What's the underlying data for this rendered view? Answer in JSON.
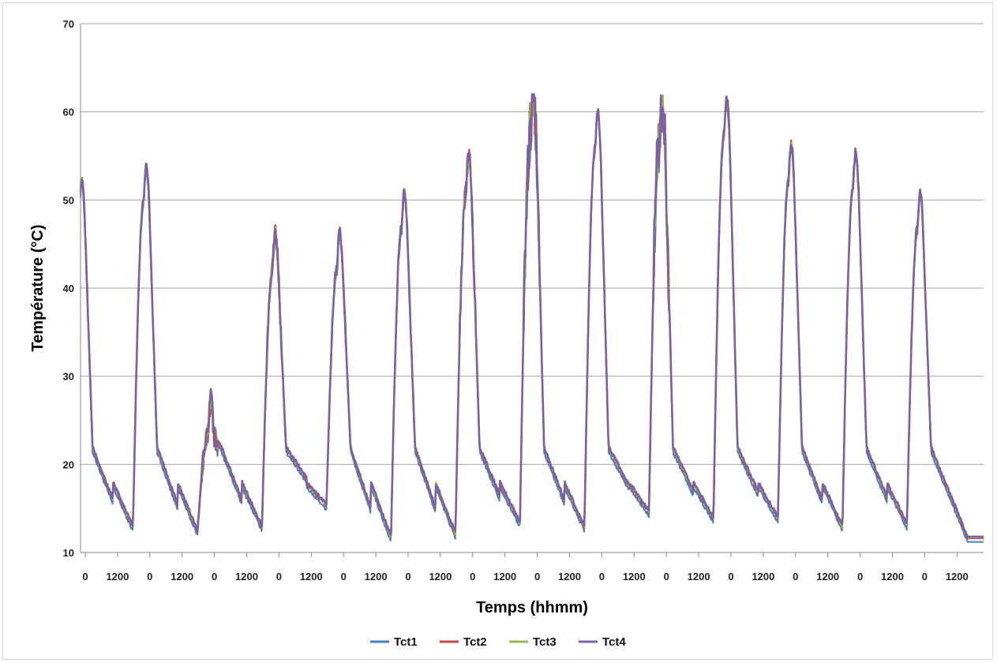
{
  "chart_data": {
    "type": "line",
    "title": "",
    "xlabel": "Temps (hhmm)",
    "ylabel": "Température (°C)",
    "ylim": [
      10,
      70
    ],
    "yticks": [
      "10",
      "20",
      "30",
      "40",
      "50",
      "60",
      "70"
    ],
    "xticks": [
      "0",
      "1200",
      "0",
      "1200",
      "0",
      "1200",
      "0",
      "1200",
      "0",
      "1200",
      "0",
      "1200",
      "0",
      "1200",
      "0",
      "1200",
      "0",
      "1200",
      "0",
      "1200",
      "0",
      "1200",
      "0",
      "1200",
      "0",
      "1200",
      "0",
      "1200"
    ],
    "x_unit": "hours (0 and 1200 hhmm repeat each day)",
    "xlim": [
      0,
      338
    ],
    "grid": "horizontal",
    "legend_position": "bottom",
    "series": [
      {
        "name": "Tct1",
        "color": "#4a7ebb"
      },
      {
        "name": "Tct2",
        "color": "#be4b48"
      },
      {
        "name": "Tct3",
        "color": "#98b954"
      },
      {
        "name": "Tct4",
        "color": "#7d60a0"
      }
    ],
    "daily_peaks": [
      52.5,
      54.0,
      27.5,
      46.5,
      46.5,
      51.0,
      55.0,
      62.0,
      60.0,
      61.0,
      61.5,
      56.5,
      55.5,
      51.0
    ],
    "daily_minimums": [
      13.5,
      13.0,
      12.5,
      13.0,
      15.5,
      11.8,
      12.2,
      13.5,
      13.0,
      14.7,
      14.0,
      14.0,
      13.0,
      13.3
    ],
    "description_note": ""
  }
}
